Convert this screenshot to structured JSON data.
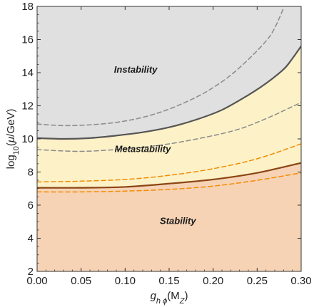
{
  "chart_data": {
    "type": "area",
    "xlabel": {
      "g": "g",
      "sub": "h ϕ",
      "paren": "(M",
      "sub2": "Z",
      "close": ")"
    },
    "ylabel": {
      "pre": "log",
      "sub": "10",
      "mid": "(",
      "mu": "μ",
      "post": "/GeV)"
    },
    "xlim": [
      0,
      0.3
    ],
    "ylim": [
      2,
      18
    ],
    "x_ticks": [
      0.0,
      0.05,
      0.1,
      0.15,
      0.2,
      0.25,
      0.3
    ],
    "x_tick_labels": [
      "0.00",
      "0.05",
      "0.10",
      "0.15",
      "0.20",
      "0.25",
      "0.30"
    ],
    "y_ticks": [
      2,
      4,
      6,
      8,
      10,
      12,
      14,
      16,
      18
    ],
    "y_tick_labels": [
      "2",
      "4",
      "6",
      "8",
      "10",
      "12",
      "14",
      "16",
      "18"
    ],
    "regions": [
      {
        "label": "Instability",
        "label_x": 0.112,
        "label_y": 14.0,
        "color": "#e0e0e0"
      },
      {
        "label": "Metastability",
        "label_x": 0.12,
        "label_y": 9.2,
        "color": "#fdf1c8"
      },
      {
        "label": "Stability",
        "label_x": 0.16,
        "label_y": 4.85,
        "color": "#f7d3b6"
      }
    ],
    "curves": [
      {
        "name": "instability boundary",
        "color": "#555555",
        "dash": false,
        "width": 2.2,
        "x": [
          0,
          0.03,
          0.06,
          0.09,
          0.12,
          0.15,
          0.18,
          0.21,
          0.24,
          0.26,
          0.28,
          0.29,
          0.3
        ],
        "y": [
          10.05,
          10.0,
          10.05,
          10.2,
          10.4,
          10.7,
          11.15,
          11.75,
          12.65,
          13.35,
          14.2,
          14.85,
          15.6
        ]
      },
      {
        "name": "instability upper dashed",
        "color": "#8a8a8a",
        "dash": true,
        "width": 1.5,
        "x": [
          0,
          0.03,
          0.06,
          0.09,
          0.12,
          0.15,
          0.18,
          0.2,
          0.22,
          0.24,
          0.26,
          0.27,
          0.28
        ],
        "y": [
          10.9,
          10.8,
          10.85,
          11.0,
          11.3,
          11.8,
          12.5,
          13.1,
          13.85,
          14.8,
          15.9,
          16.7,
          17.9
        ]
      },
      {
        "name": "instability lower dashed",
        "color": "#8a8a8a",
        "dash": true,
        "width": 1.5,
        "x": [
          0,
          0.05,
          0.1,
          0.15,
          0.2,
          0.23,
          0.25,
          0.27,
          0.28,
          0.29,
          0.3
        ],
        "y": [
          9.35,
          9.25,
          9.4,
          9.7,
          10.2,
          10.6,
          11.0,
          11.45,
          11.7,
          11.95,
          12.2
        ]
      },
      {
        "name": "metastability boundary",
        "color": "#8b4513",
        "dash": false,
        "width": 2.2,
        "x": [
          0,
          0.05,
          0.1,
          0.15,
          0.2,
          0.25,
          0.3
        ],
        "y": [
          7.05,
          7.05,
          7.1,
          7.3,
          7.55,
          7.95,
          8.55
        ]
      },
      {
        "name": "metastability upper dashed",
        "color": "#f28c00",
        "dash": true,
        "width": 1.5,
        "x": [
          0,
          0.05,
          0.1,
          0.15,
          0.2,
          0.25,
          0.3
        ],
        "y": [
          7.4,
          7.45,
          7.55,
          7.8,
          8.2,
          8.8,
          9.7
        ]
      },
      {
        "name": "metastability lower dashed",
        "color": "#f28c00",
        "dash": true,
        "width": 1.5,
        "x": [
          0,
          0.05,
          0.1,
          0.15,
          0.2,
          0.25,
          0.3
        ],
        "y": [
          6.8,
          6.8,
          6.85,
          6.95,
          7.15,
          7.5,
          7.95
        ]
      }
    ],
    "grid": false
  }
}
